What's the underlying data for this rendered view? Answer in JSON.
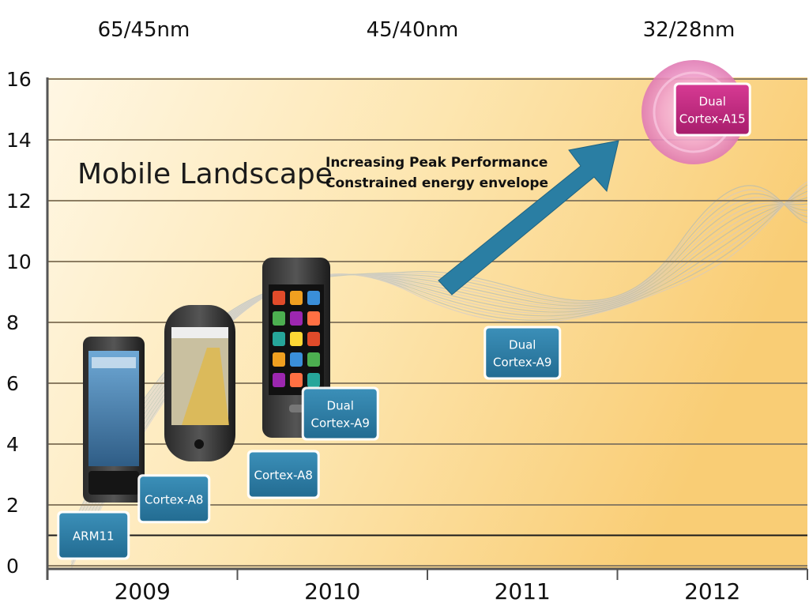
{
  "process_nodes": [
    "65/45nm",
    "45/40nm",
    "32/28nm"
  ],
  "title": "Mobile Landscape",
  "annotation": [
    "Increasing Peak Performance",
    "Constrained energy envelope"
  ],
  "chart_data": {
    "type": "scatter",
    "categories": [
      "2009",
      "2010",
      "2011",
      "2012"
    ],
    "yticks": [
      0,
      2,
      4,
      6,
      8,
      10,
      12,
      14,
      16
    ],
    "ylim": [
      0,
      16
    ],
    "grid": true,
    "reference_line": 1,
    "points": [
      {
        "label": [
          "ARM11"
        ],
        "year": 2009,
        "value": 1,
        "color": "#2e7fa6"
      },
      {
        "label": [
          "Cortex-A8"
        ],
        "year": 2009,
        "value": 2.2,
        "color": "#2e7fa6"
      },
      {
        "label": [
          "Cortex-A8"
        ],
        "year": 2010,
        "value": 3,
        "color": "#2e7fa6"
      },
      {
        "label": [
          "Dual",
          "Cortex-A9"
        ],
        "year": 2010,
        "value": 5,
        "color": "#2e7fa6"
      },
      {
        "label": [
          "Dual",
          "Cortex-A9"
        ],
        "year": 2011,
        "value": 7,
        "color": "#2e7fa6"
      },
      {
        "label": [
          "Dual",
          "Cortex-A15"
        ],
        "year": 2012,
        "value": 15,
        "color": "#c2277f",
        "highlight": true
      }
    ]
  },
  "colors": {
    "background_light": "#fff3d9",
    "background_dark": "#f9cd75",
    "grid": "#9a8a6a",
    "box_blue": "#2e7fa6",
    "box_magenta": "#c2277f",
    "arrow": "#2a7ea3",
    "halo": "#e58cc0"
  }
}
